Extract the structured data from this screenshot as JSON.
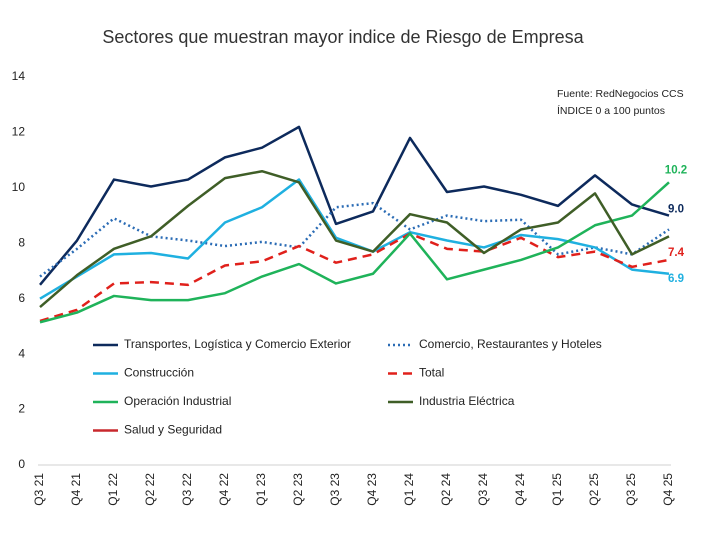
{
  "chart_data": {
    "type": "line",
    "title": "Sectores que muestran mayor indice de Riesgo de Empresa",
    "annotations": [
      "Fuente: RedNegocios CCS",
      "ÍNDICE 0 a 100  puntos"
    ],
    "categories": [
      "Q3 21",
      "Q4 21",
      "Q1 22",
      "Q2 22",
      "Q3 22",
      "Q4 22",
      "Q1 23",
      "Q2 23",
      "Q3 23",
      "Q4 23",
      "Q1 24",
      "Q2 24",
      "Q3 24",
      "Q4 24",
      "Q1 25",
      "Q2 25",
      "Q3 25",
      "Q4 25"
    ],
    "ylim": [
      0,
      14
    ],
    "yticks": [
      0,
      2,
      4,
      6,
      8,
      10,
      12,
      14
    ],
    "grid": false,
    "legend": "inside-bottom",
    "series": [
      {
        "name": "Transportes, Logística y Comercio Exterior",
        "color": "#0d2a5c",
        "dash": "solid",
        "values": [
          6.5,
          8.1,
          10.3,
          10.05,
          10.3,
          11.1,
          11.45,
          12.2,
          8.7,
          9.15,
          11.8,
          9.85,
          10.05,
          9.75,
          9.35,
          10.45,
          9.4,
          9.0
        ],
        "value_labels": [
          null,
          null,
          null,
          null,
          null,
          null,
          null,
          null,
          null,
          null,
          null,
          null,
          null,
          null,
          null,
          null,
          null,
          "9.0"
        ]
      },
      {
        "name": "Comercio, Restaurantes y Hoteles",
        "color": "#2b6cb5",
        "dash": "dotted",
        "values": [
          6.8,
          7.8,
          8.9,
          8.25,
          8.1,
          7.9,
          8.05,
          7.85,
          9.3,
          9.45,
          8.5,
          9.0,
          8.8,
          8.85,
          7.6,
          7.85,
          7.6,
          8.5
        ]
      },
      {
        "name": "Construcción",
        "color": "#1fb0e0",
        "dash": "solid",
        "values": [
          6.0,
          6.8,
          7.6,
          7.65,
          7.45,
          8.75,
          9.3,
          10.3,
          8.2,
          7.7,
          8.4,
          8.1,
          7.85,
          8.3,
          8.15,
          7.85,
          7.05,
          6.9
        ],
        "value_labels": [
          null,
          null,
          null,
          null,
          null,
          null,
          null,
          null,
          null,
          null,
          null,
          null,
          null,
          null,
          null,
          null,
          null,
          "6.9"
        ]
      },
      {
        "name": "Total",
        "color": "#e0201b",
        "dash": "dashed",
        "values": [
          5.2,
          5.6,
          6.55,
          6.6,
          6.5,
          7.2,
          7.35,
          7.9,
          7.3,
          7.6,
          8.35,
          7.8,
          7.7,
          8.2,
          7.5,
          7.7,
          7.15,
          7.4
        ],
        "value_labels": [
          null,
          null,
          null,
          null,
          null,
          null,
          null,
          null,
          null,
          null,
          null,
          null,
          null,
          null,
          null,
          null,
          null,
          "7.4"
        ]
      },
      {
        "name": "Operación Industrial",
        "color": "#1fb35a",
        "dash": "solid",
        "values": [
          5.15,
          5.5,
          6.1,
          5.95,
          5.95,
          6.2,
          6.8,
          7.25,
          6.55,
          6.9,
          8.35,
          6.7,
          7.05,
          7.4,
          7.85,
          8.65,
          9.0,
          10.2
        ],
        "value_labels": [
          null,
          null,
          null,
          null,
          null,
          null,
          null,
          null,
          null,
          null,
          null,
          null,
          null,
          null,
          null,
          null,
          null,
          "10.2"
        ]
      },
      {
        "name": "Industria Eléctrica",
        "color": "#3f5e27",
        "dash": "solid",
        "values": [
          5.7,
          6.85,
          7.8,
          8.25,
          9.35,
          10.35,
          10.6,
          10.2,
          8.1,
          7.7,
          9.05,
          8.75,
          7.65,
          8.5,
          8.75,
          9.8,
          7.6,
          8.25
        ]
      },
      {
        "name": "Salud y Seguridad",
        "color": "#c8282d",
        "dash": "solid",
        "values": [
          null,
          null,
          null,
          null,
          null,
          null,
          null,
          null,
          null,
          null,
          null,
          null,
          null,
          null,
          null,
          null,
          null,
          null
        ]
      }
    ]
  }
}
